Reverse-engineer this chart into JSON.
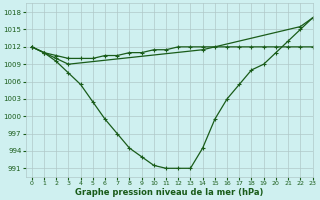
{
  "title": "Graphe pression niveau de la mer (hPa)",
  "bg_color": "#cff0f0",
  "grid_color": "#b0c8c8",
  "line_color": "#1a5c1a",
  "marker_color": "#1a5c1a",
  "xlim": [
    -0.5,
    23
  ],
  "ylim": [
    989.5,
    1019.5
  ],
  "yticks": [
    991,
    994,
    997,
    1000,
    1003,
    1006,
    1009,
    1012,
    1015,
    1018
  ],
  "xticks": [
    0,
    1,
    2,
    3,
    4,
    5,
    6,
    7,
    8,
    9,
    10,
    11,
    12,
    13,
    14,
    15,
    16,
    17,
    18,
    19,
    20,
    21,
    22,
    23
  ],
  "series1_x": [
    0,
    1,
    2,
    3,
    4,
    5,
    6,
    7,
    8,
    9,
    10,
    11,
    12,
    13,
    14,
    15,
    16,
    17,
    18,
    19,
    20,
    21,
    22,
    23
  ],
  "series1_y": [
    1012,
    1011,
    1010.5,
    1010,
    1010,
    1010,
    1010.5,
    1010.5,
    1011,
    1011,
    1011.5,
    1011.5,
    1012,
    1012,
    1012,
    1012,
    1012,
    1012,
    1012,
    1012,
    1012,
    1012,
    1012,
    1012
  ],
  "series2_x": [
    0,
    1,
    2,
    3,
    14,
    22,
    23
  ],
  "series2_y": [
    1012,
    1011,
    1010,
    1009,
    1011.5,
    1015.5,
    1017
  ],
  "series3_x": [
    0,
    1,
    2,
    3,
    4,
    5,
    6,
    7,
    8,
    9,
    10,
    11,
    12,
    13,
    14,
    15,
    16,
    17,
    18,
    19,
    20,
    21,
    22,
    23
  ],
  "series3_y": [
    1012,
    1011,
    1009.5,
    1007.5,
    1005.5,
    1002.5,
    999.5,
    997,
    994.5,
    993,
    991.5,
    991,
    991,
    991,
    994.5,
    999.5,
    1003,
    1005.5,
    1008,
    1009,
    1011,
    1013,
    1015,
    1017
  ]
}
